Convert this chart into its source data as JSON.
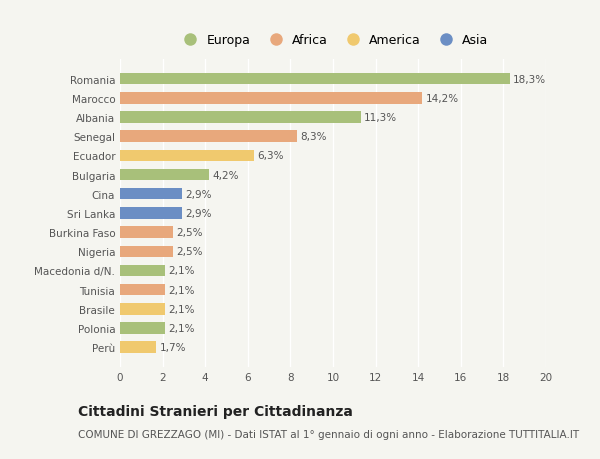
{
  "countries": [
    "Romania",
    "Marocco",
    "Albania",
    "Senegal",
    "Ecuador",
    "Bulgaria",
    "Cina",
    "Sri Lanka",
    "Burkina Faso",
    "Nigeria",
    "Macedonia d/N.",
    "Tunisia",
    "Brasile",
    "Polonia",
    "Perù"
  ],
  "values": [
    18.3,
    14.2,
    11.3,
    8.3,
    6.3,
    4.2,
    2.9,
    2.9,
    2.5,
    2.5,
    2.1,
    2.1,
    2.1,
    2.1,
    1.7
  ],
  "labels": [
    "18,3%",
    "14,2%",
    "11,3%",
    "8,3%",
    "6,3%",
    "4,2%",
    "2,9%",
    "2,9%",
    "2,5%",
    "2,5%",
    "2,1%",
    "2,1%",
    "2,1%",
    "2,1%",
    "1,7%"
  ],
  "continents": [
    "Europa",
    "Africa",
    "Europa",
    "Africa",
    "America",
    "Europa",
    "Asia",
    "Asia",
    "Africa",
    "Africa",
    "Europa",
    "Africa",
    "America",
    "Europa",
    "America"
  ],
  "continent_colors": {
    "Europa": "#a8c07a",
    "Africa": "#e8a87c",
    "America": "#f0c96e",
    "Asia": "#6b8ec4"
  },
  "legend_order": [
    "Europa",
    "Africa",
    "America",
    "Asia"
  ],
  "xlim": [
    0,
    20
  ],
  "xticks": [
    0,
    2,
    4,
    6,
    8,
    10,
    12,
    14,
    16,
    18,
    20
  ],
  "title": "Cittadini Stranieri per Cittadinanza",
  "subtitle": "COMUNE DI GREZZAGO (MI) - Dati ISTAT al 1° gennaio di ogni anno - Elaborazione TUTTITALIA.IT",
  "background_color": "#f5f5f0",
  "bar_height": 0.6,
  "grid_color": "#ffffff",
  "title_fontsize": 10,
  "subtitle_fontsize": 7.5,
  "label_fontsize": 7.5,
  "tick_fontsize": 7.5,
  "legend_fontsize": 9
}
